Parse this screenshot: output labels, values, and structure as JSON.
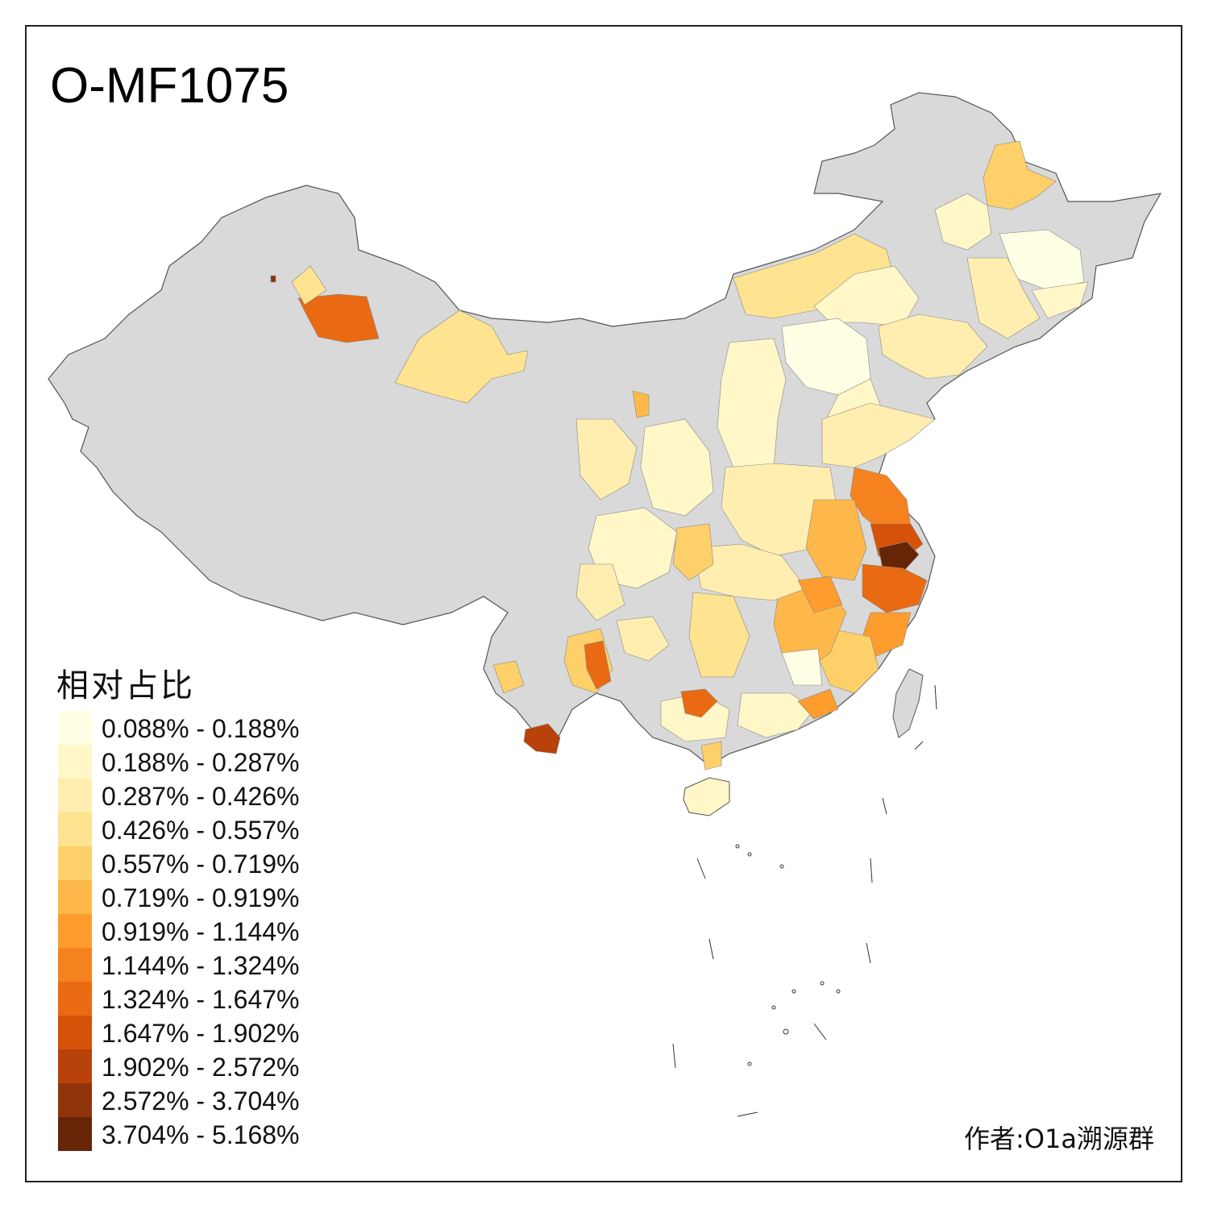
{
  "map": {
    "title": "O-MF1075",
    "author": "作者:O1a溯源群",
    "base_color": "#d9d9d9",
    "boundary_color": "#555555"
  },
  "legend": {
    "title": "相对占比",
    "items": [
      {
        "label": "0.088% - 0.188%",
        "color": "#ffffe5"
      },
      {
        "label": "0.188% - 0.287%",
        "color": "#fff7c8"
      },
      {
        "label": "0.287% - 0.426%",
        "color": "#ffeeb0"
      },
      {
        "label": "0.426% - 0.557%",
        "color": "#fee391"
      },
      {
        "label": "0.557% - 0.719%",
        "color": "#fed06a"
      },
      {
        "label": "0.719% - 0.919%",
        "color": "#feb84a"
      },
      {
        "label": "0.919% - 1.144%",
        "color": "#fe9c2e"
      },
      {
        "label": "1.144% - 1.324%",
        "color": "#f6821f"
      },
      {
        "label": "1.324% - 1.647%",
        "color": "#e96a12"
      },
      {
        "label": "1.647% - 1.902%",
        "color": "#d55208"
      },
      {
        "label": "1.902% - 2.572%",
        "color": "#b9420a"
      },
      {
        "label": "2.572% - 3.704%",
        "color": "#8f330b"
      },
      {
        "label": "3.704% - 5.168%",
        "color": "#662506"
      }
    ]
  }
}
